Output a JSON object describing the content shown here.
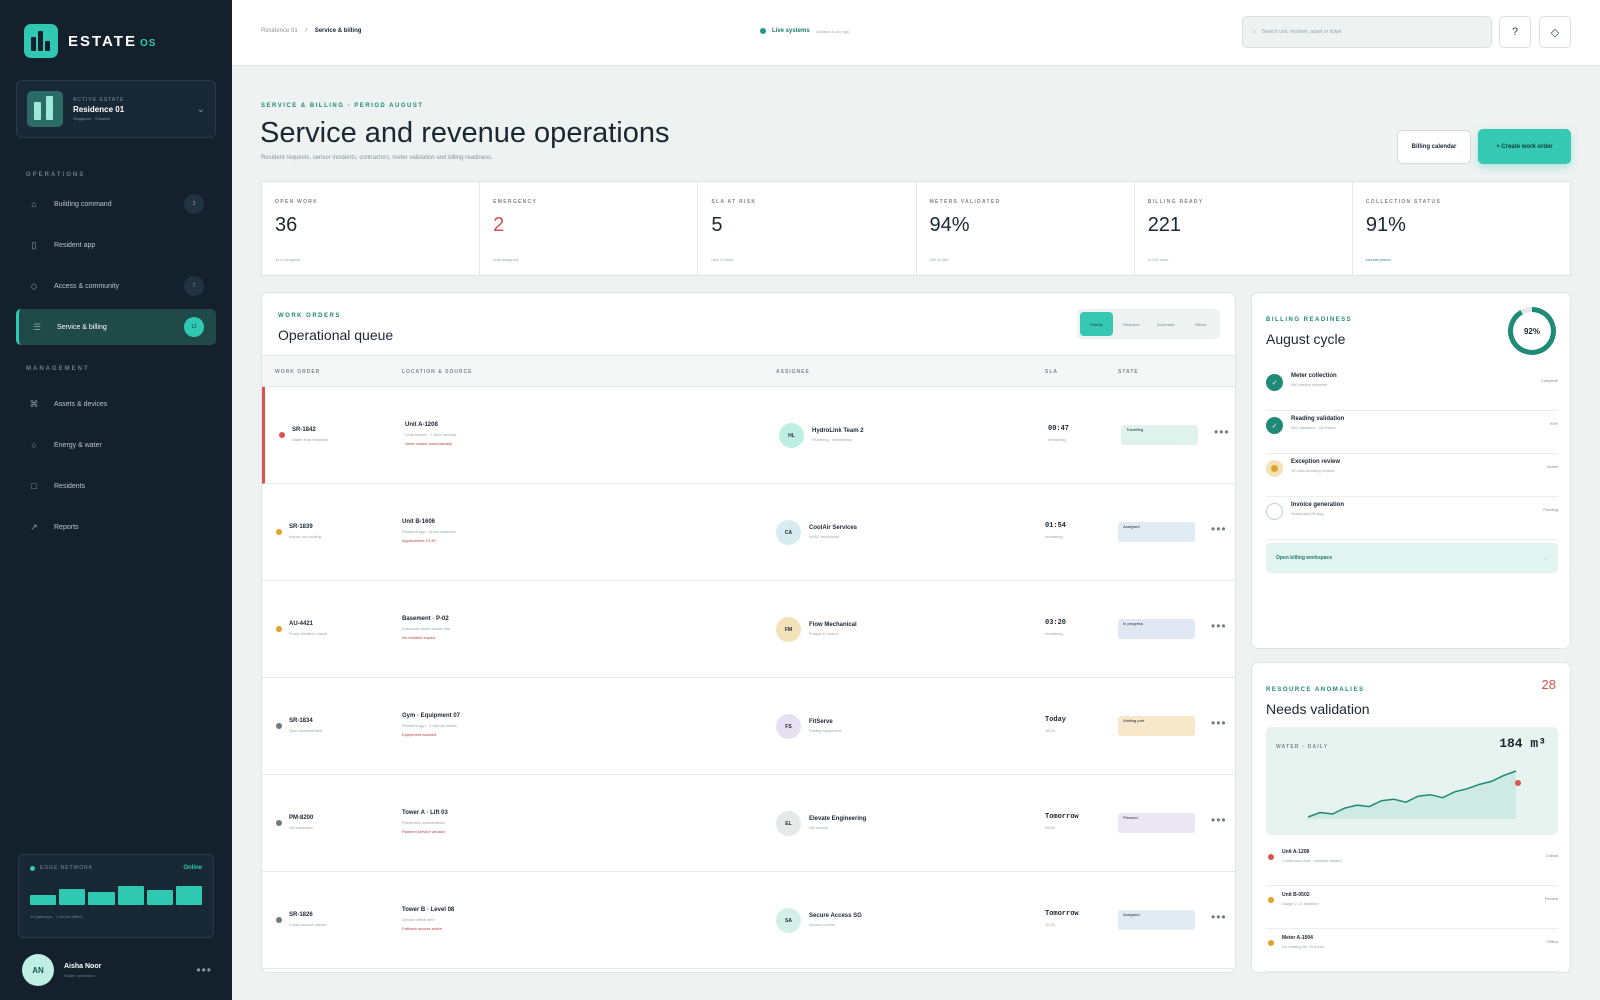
{
  "brand": {
    "name": "ESTATE",
    "suffix": "OS"
  },
  "estate": {
    "kicker": "ACTIVE ESTATE",
    "name": "Residence 01",
    "sub": "Singapore · 3 towers"
  },
  "sidebar": {
    "operations_label": "OPERATIONS",
    "management_label": "MANAGEMENT",
    "operations": [
      {
        "label": "Building command",
        "badge": "3",
        "icon": "home-icon"
      },
      {
        "label": "Resident app",
        "badge": "",
        "icon": "phone-icon"
      },
      {
        "label": "Access & community",
        "badge": "7",
        "icon": "diamond-icon"
      },
      {
        "label": "Service & billing",
        "badge": "12",
        "icon": "list-icon",
        "active": true
      }
    ],
    "management": [
      {
        "label": "Assets & devices",
        "icon": "command-icon"
      },
      {
        "label": "Energy & water",
        "icon": "circle-icon"
      },
      {
        "label": "Residents",
        "icon": "square-icon"
      },
      {
        "label": "Reports",
        "icon": "arrow-icon"
      }
    ]
  },
  "edge": {
    "label": "EDGE NETWORK",
    "status": "Online",
    "bars": [
      0.45,
      0.75,
      0.6,
      0.85,
      0.7,
      0.85
    ],
    "footer": "14 gateways · 1 device offline"
  },
  "user": {
    "initials": "AN",
    "name": "Aisha Noor",
    "role": "Estate operations"
  },
  "topbar": {
    "crumb1": "Residence 01",
    "crumb2": "Service & billing",
    "live": "Live systems",
    "updated": "Updated 6 sec ago",
    "search_placeholder": "Search unit, resident, asset or ticket",
    "help": "?"
  },
  "page": {
    "eyebrow": "SERVICE & BILLING · PERIOD AUGUST",
    "title": "Service and revenue operations",
    "subtitle": "Resident requests, sensor incidents, contractors, meter validation and billing readiness.",
    "btn_calendar": "Billing calendar",
    "btn_create": "+ Create work order"
  },
  "kpis": [
    {
      "label": "OPEN WORK",
      "value": "36",
      "foot": "14 in progress"
    },
    {
      "label": "EMERGENCY",
      "value": "2",
      "foot": "both assigned",
      "red": true
    },
    {
      "label": "SLA AT RISK",
      "value": "5",
      "foot": "next 3 hours"
    },
    {
      "label": "METERS VALIDATED",
      "value": "94%",
      "foot": "452 of 480"
    },
    {
      "label": "BILLING READY",
      "value": "221",
      "foot": "of 240 units"
    },
    {
      "label": "COLLECTION STATUS",
      "value": "91%",
      "foot": "current period",
      "green": true
    }
  ],
  "queue": {
    "eyebrow": "WORK ORDERS",
    "title": "Operational queue",
    "filters": [
      "Priority",
      "Resident",
      "Automatic",
      "Filters"
    ],
    "columns": [
      "WORK ORDER",
      "LOCATION & SOURCE",
      "ASSIGNEE",
      "SLA",
      "STATE"
    ],
    "rows": [
      {
        "id": "SR-1842",
        "desc": "Water leak response",
        "loc": "Unit A-1208",
        "src": "Leak sensor · 1 floor severity",
        "note": "Valve closed automatically",
        "ini": "HL",
        "assignee": "HydroLink Team 2",
        "role": "Plumbing · emergency",
        "sla": "00:47",
        "sla_sub": "remaining",
        "state": "Travelling",
        "dot": "#d9534f",
        "hot": true,
        "av_bg": "#bfeee3",
        "st_bg": "#dff2ec"
      },
      {
        "id": "SR-1839",
        "desc": "Aircon not cooling",
        "loc": "Unit B-1606",
        "src": "Resident app · photo attached",
        "note": "Appointment 13:30",
        "ini": "CA",
        "assignee": "CoolAir Services",
        "role": "HVAC technician",
        "sla": "01:54",
        "sla_sub": "remaining",
        "state": "Assigned",
        "dot": "#e0a32b",
        "av_bg": "#d6ecf1",
        "st_bg": "#e1ebf2"
      },
      {
        "id": "AU-4421",
        "desc": "Pump vibration check",
        "loc": "Basement · P-02",
        "src": "Automatic asset health rule",
        "note": "No resident impact",
        "ini": "FM",
        "assignee": "Flow Mechanical",
        "role": "Pumps & motors",
        "sla": "03:20",
        "sla_sub": "remaining",
        "state": "In progress",
        "dot": "#e0a32b",
        "av_bg": "#f3e2b8",
        "st_bg": "#e1e8f3"
      },
      {
        "id": "SR-1834",
        "desc": "Gym treadmill fault",
        "loc": "Gym · Equipment 07",
        "src": "Resident app · 3 reports linked",
        "note": "Equipment isolated",
        "ini": "FS",
        "assignee": "FitServe",
        "role": "Facility equipment",
        "sla": "Today",
        "sla_sub": "16:00",
        "state": "Waiting part",
        "dot": "#6f7a82",
        "av_bg": "#e7e0f3",
        "st_bg": "#f6e8c8"
      },
      {
        "id": "PM-8200",
        "desc": "Lift inspection",
        "loc": "Tower A · Lift 03",
        "src": "Preventive maintenance",
        "note": "Planned service window",
        "ini": "EL",
        "assignee": "Elevate Engineering",
        "role": "Lift service",
        "sla": "Tomorrow",
        "sla_sub": "09:00",
        "state": "Planned",
        "dot": "#6f7a82",
        "av_bg": "#e6e9e8",
        "st_bg": "#ece6f3"
      },
      {
        "id": "SR-1826",
        "desc": "Lobby access reader",
        "loc": "Tower B · Level 08",
        "src": "Device offline alert",
        "note": "Fallback access active",
        "ini": "SA",
        "assignee": "Secure Access SG",
        "role": "Access control",
        "sla": "Tomorrow",
        "sla_sub": "11:30",
        "state": "Assigned",
        "dot": "#6f7a82",
        "av_bg": "#d4efe7",
        "st_bg": "#e1ebf2"
      }
    ]
  },
  "billing": {
    "eyebrow": "BILLING READINESS",
    "title": "August cycle",
    "pct": "92%",
    "pct_value": 0.92,
    "steps": [
      {
        "name": "Meter collection",
        "sub": "480 meters received",
        "right": "Complete",
        "state": "done"
      },
      {
        "name": "Reading validation",
        "sub": "452 validated · 28 review",
        "right": "94%",
        "state": "done"
      },
      {
        "name": "Exception review",
        "sub": "19 units blocking invoice",
        "right": "Active",
        "state": "active"
      },
      {
        "name": "Invoice generation",
        "sub": "Scheduled 28 Aug",
        "right": "Pending",
        "state": "pending"
      }
    ],
    "open": "Open billing workspace",
    "arrow": "→"
  },
  "anomalies": {
    "eyebrow": "RESOURCE ANOMALIES",
    "title": "Needs validation",
    "count": "28",
    "water_label": "WATER · DAILY",
    "water_value": "184 m³",
    "series": [
      12,
      15,
      14,
      18,
      20,
      19,
      23,
      24,
      22,
      26,
      27,
      25,
      29,
      31,
      34,
      36,
      40,
      43
    ],
    "items": [
      {
        "name": "Unit A-1208",
        "sub": "Continuous flow · resident alerted",
        "right": "Critical",
        "dot": "#d9534f"
      },
      {
        "name": "Unit B-0502",
        "sub": "Usage 2.1× baseline",
        "right": "Review",
        "dot": "#e0a32b"
      },
      {
        "name": "Meter A-1004",
        "sub": "No reading for 18 hours",
        "right": "Offline",
        "dot": "#e0a32b"
      }
    ]
  }
}
